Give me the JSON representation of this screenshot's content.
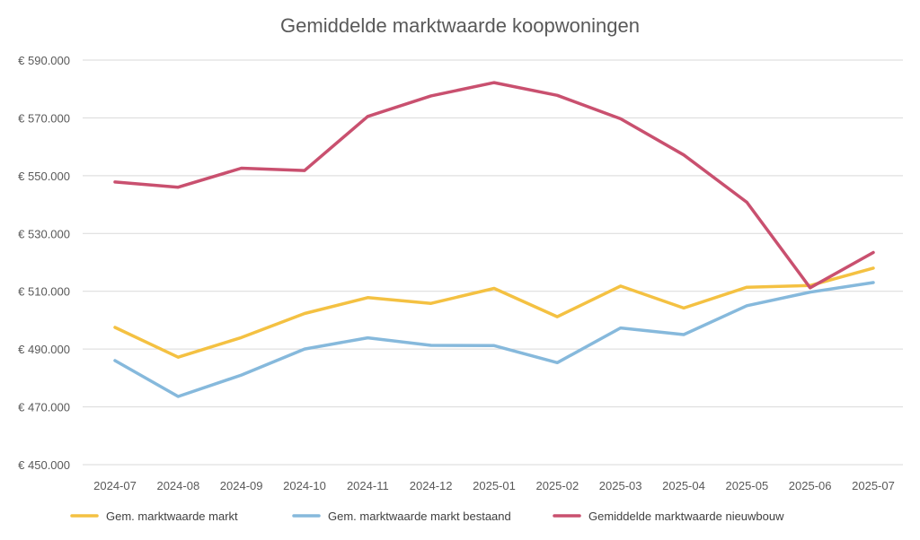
{
  "chart_data": {
    "type": "line",
    "title": "Gemiddelde marktwaarde koopwoningen",
    "xlabel": "",
    "ylabel": "",
    "categories": [
      "2024-07",
      "2024-08",
      "2024-09",
      "2024-10",
      "2024-11",
      "2024-12",
      "2025-01",
      "2025-02",
      "2025-03",
      "2025-04",
      "2025-05",
      "2025-06",
      "2025-07"
    ],
    "ylim": [
      450000,
      590000
    ],
    "y_ticks": [
      450000,
      470000,
      490000,
      510000,
      530000,
      550000,
      570000,
      590000
    ],
    "y_tick_labels": [
      "€ 450.000",
      "€ 470.000",
      "€ 490.000",
      "€ 510.000",
      "€ 530.000",
      "€ 550.000",
      "€ 570.000",
      "€ 590.000"
    ],
    "grid": true,
    "legend_position": "bottom",
    "series": [
      {
        "name": "Gem. marktwaarde markt",
        "color": "#f4c142",
        "values": [
          497500,
          487200,
          494000,
          502300,
          507800,
          505800,
          511000,
          501200,
          511800,
          504200,
          511400,
          512000,
          518000
        ]
      },
      {
        "name": "Gem. marktwaarde markt bestaand",
        "color": "#86b9dc",
        "values": [
          486000,
          473600,
          481000,
          490000,
          493900,
          491300,
          491200,
          485300,
          497300,
          495000,
          505000,
          509700,
          513000
        ]
      },
      {
        "name": "Gemiddelde marktwaarde nieuwbouw",
        "color": "#c9506f",
        "values": [
          547800,
          546000,
          552600,
          551800,
          570500,
          577600,
          582200,
          577800,
          569700,
          557200,
          540800,
          511200,
          523400
        ]
      }
    ]
  }
}
